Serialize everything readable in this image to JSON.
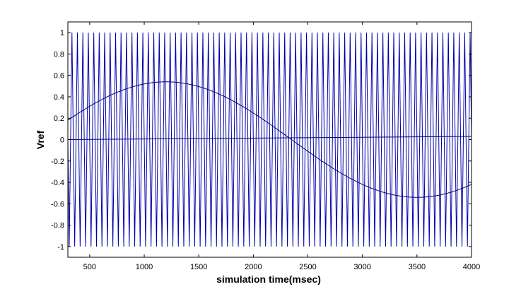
{
  "chart_data": {
    "type": "line",
    "title": "",
    "xlabel": "simulation time(msec)",
    "ylabel": "Vref",
    "xlim": [
      300,
      4000
    ],
    "ylim": [
      -1.1,
      1.1
    ],
    "xticks": [
      500,
      1000,
      1500,
      2000,
      2500,
      3000,
      3500,
      4000
    ],
    "yticks": [
      -1,
      -0.8,
      -0.6,
      -0.4,
      -0.2,
      0,
      0.2,
      0.4,
      0.6,
      0.8,
      1
    ],
    "grid": false,
    "legend": "none",
    "series": [
      {
        "description": "high-frequency triangular carrier between -1 and 1",
        "color": "#0000aa",
        "amplitude": 1,
        "period_msec": 50,
        "phase_msec": 12.5
      },
      {
        "description": "low-frequency sinusoidal reference",
        "color": "#000080",
        "amplitude": 0.54,
        "period_msec": 4600,
        "phase_msec": 50
      },
      {
        "description": "near-zero line rising slightly",
        "color": "#000080",
        "x": [
          300,
          4000
        ],
        "y": [
          0.0,
          0.03
        ]
      }
    ]
  }
}
